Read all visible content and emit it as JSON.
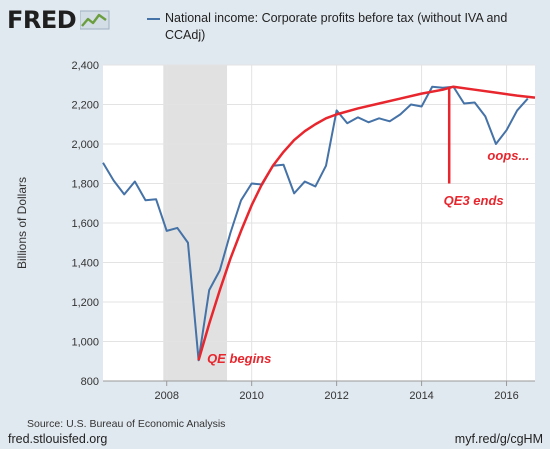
{
  "header": {
    "logo_text": "FRED",
    "logo_icon": "chart-line-icon",
    "legend_label": "National income: Corporate profits before tax (without IVA and CCAdj)"
  },
  "chart_data": {
    "type": "line",
    "ylabel": "Billions of Dollars",
    "xlabel": "",
    "ylim": [
      800,
      2400
    ],
    "xlim": [
      2006.5,
      2016.67
    ],
    "y_ticks": [
      800,
      1000,
      1200,
      1400,
      1600,
      1800,
      2000,
      2200,
      2400
    ],
    "y_tick_labels": [
      "800",
      "1,000",
      "1,200",
      "1,400",
      "1,600",
      "1,800",
      "2,000",
      "2,200",
      "2,400"
    ],
    "x_ticks": [
      2008,
      2010,
      2012,
      2014,
      2016
    ],
    "x_tick_labels": [
      "2008",
      "2010",
      "2012",
      "2014",
      "2016"
    ],
    "grid": true,
    "recession_shading": [
      2007.92,
      2009.42
    ],
    "series": [
      {
        "name": "National income: Corporate profits before tax (without IVA and CCAdj)",
        "color": "#4572a7",
        "x": [
          2006.5,
          2006.75,
          2007.0,
          2007.25,
          2007.5,
          2007.75,
          2008.0,
          2008.25,
          2008.5,
          2008.75,
          2009.0,
          2009.25,
          2009.5,
          2009.75,
          2010.0,
          2010.25,
          2010.5,
          2010.75,
          2011.0,
          2011.25,
          2011.5,
          2011.75,
          2012.0,
          2012.25,
          2012.5,
          2012.75,
          2013.0,
          2013.25,
          2013.5,
          2013.75,
          2014.0,
          2014.25,
          2014.5,
          2014.75,
          2015.0,
          2015.25,
          2015.5,
          2015.75,
          2016.0,
          2016.25,
          2016.5
        ],
        "values": [
          1905,
          1815,
          1745,
          1810,
          1715,
          1720,
          1560,
          1575,
          1500,
          905,
          1260,
          1360,
          1550,
          1715,
          1800,
          1795,
          1890,
          1895,
          1750,
          1810,
          1785,
          1890,
          2170,
          2105,
          2135,
          2110,
          2130,
          2115,
          2150,
          2200,
          2190,
          2290,
          2285,
          2290,
          2205,
          2210,
          2140,
          2000,
          2070,
          2170,
          2230
        ]
      }
    ],
    "annotations": [
      {
        "text": "QE begins",
        "x": 2008.95,
        "y": 890,
        "color": "#e8262e"
      },
      {
        "text": "QE3 ends",
        "x": 2014.52,
        "y": 1690,
        "color": "#e8262e"
      },
      {
        "text": "oops...",
        "x": 2015.55,
        "y": 1920,
        "color": "#e8262e"
      }
    ],
    "overlay_curve": {
      "color": "#e8262e",
      "x": [
        2008.75,
        2009.0,
        2009.25,
        2009.5,
        2009.75,
        2010.0,
        2010.25,
        2010.5,
        2010.75,
        2011.0,
        2011.25,
        2011.5,
        2011.75,
        2012.0,
        2012.5,
        2013.0,
        2013.5,
        2014.0,
        2014.5,
        2014.75,
        2015.25,
        2015.75,
        2016.25,
        2016.67
      ],
      "values": [
        905,
        1090,
        1260,
        1420,
        1560,
        1690,
        1800,
        1890,
        1960,
        2020,
        2065,
        2100,
        2130,
        2150,
        2180,
        2205,
        2230,
        2255,
        2275,
        2290,
        2275,
        2260,
        2245,
        2235
      ]
    },
    "vertical_marker": {
      "x": 2014.65,
      "y_from": 1800,
      "y_to": 2290,
      "color": "#e8262e"
    }
  },
  "footer": {
    "source": "Source: U.S. Bureau of Economic Analysis",
    "site": "fred.stlouisfed.org",
    "short_url": "myf.red/g/cgHM"
  }
}
